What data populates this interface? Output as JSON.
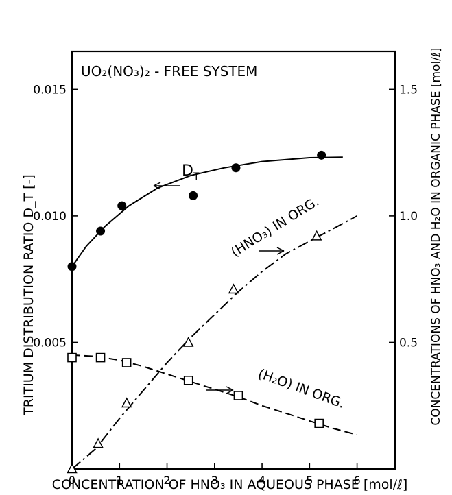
{
  "chart_data": {
    "type": "scatter",
    "title": "UO₂(NO₃)₂ - FREE SYSTEM",
    "xlabel": "CONCENTRATION OF HNO₃ IN AQUEOUS PHASE [mol/ℓ]",
    "ylabel_left": "TRITIUM DISTRIBUTION RATIO D_T [-]",
    "ylabel_right": "CONCENTRATIONS OF HNO₃ AND H₂O IN ORGANIC PHASE [mol/ℓ]",
    "xlim": [
      0,
      6.8
    ],
    "ylim_left": [
      0,
      0.0165
    ],
    "ylim_right": [
      0,
      1.65
    ],
    "x_ticks": [
      0,
      1,
      2,
      3,
      4,
      5,
      6
    ],
    "x_tick_labels": [
      "0",
      "1",
      "2",
      "3",
      "4",
      "5",
      "6"
    ],
    "y_left_ticks": [
      0.005,
      0.01,
      0.015
    ],
    "y_left_tick_labels": [
      "0.005",
      "0.010",
      "0.015"
    ],
    "y_right_ticks": [
      0.5,
      1.0,
      1.5
    ],
    "y_right_tick_labels": [
      "0.5",
      "1.0",
      "1.5"
    ],
    "grid": false,
    "series": [
      {
        "name": "D_T",
        "axis": "left",
        "marker": "filled-circle",
        "line": "solid",
        "x": [
          0,
          0.6,
          1.05,
          2.55,
          3.45,
          5.25
        ],
        "y": [
          0.008,
          0.0094,
          0.0104,
          0.0108,
          0.0119,
          0.0124
        ],
        "fit_x": [
          0,
          0.3,
          0.7,
          1.2,
          1.8,
          2.5,
          3.2,
          4.0,
          5.0,
          5.7
        ],
        "fit_y": [
          0.008,
          0.0088,
          0.0096,
          0.0104,
          0.0111,
          0.0116,
          0.0119,
          0.01215,
          0.0123,
          0.01232
        ]
      },
      {
        "name": "(HNO₃) IN ORG.",
        "axis": "right",
        "marker": "open-triangle",
        "line": "dash-dot",
        "x": [
          0,
          0.55,
          1.15,
          2.45,
          3.4,
          5.15
        ],
        "y": [
          0.0,
          0.1,
          0.26,
          0.5,
          0.71,
          0.92
        ],
        "fit_x": [
          0,
          0.5,
          1.0,
          1.5,
          2.0,
          2.5,
          3.0,
          3.5,
          4.0,
          4.5,
          5.0,
          5.5,
          6.0
        ],
        "fit_y": [
          0.0,
          0.08,
          0.2,
          0.31,
          0.42,
          0.52,
          0.61,
          0.7,
          0.78,
          0.85,
          0.9,
          0.95,
          1.0
        ]
      },
      {
        "name": "(H₂O) IN ORG.",
        "axis": "right",
        "marker": "open-square",
        "line": "dashed",
        "x": [
          0,
          0.6,
          1.15,
          2.45,
          3.5,
          5.2
        ],
        "y": [
          0.44,
          0.44,
          0.42,
          0.35,
          0.29,
          0.18
        ],
        "fit_x": [
          0,
          0.5,
          1.0,
          1.5,
          2.0,
          2.5,
          3.0,
          3.5,
          4.0,
          4.5,
          5.0,
          5.5,
          6.0
        ],
        "fit_y": [
          0.45,
          0.445,
          0.43,
          0.405,
          0.375,
          0.345,
          0.315,
          0.285,
          0.25,
          0.22,
          0.19,
          0.16,
          0.135
        ]
      }
    ],
    "annotations": {
      "dt_label_main": "D",
      "dt_label_sub": "T",
      "hno3_label": "(HNO₃) IN ORG.",
      "h2o_label": "(H₂O) IN ORG."
    }
  }
}
